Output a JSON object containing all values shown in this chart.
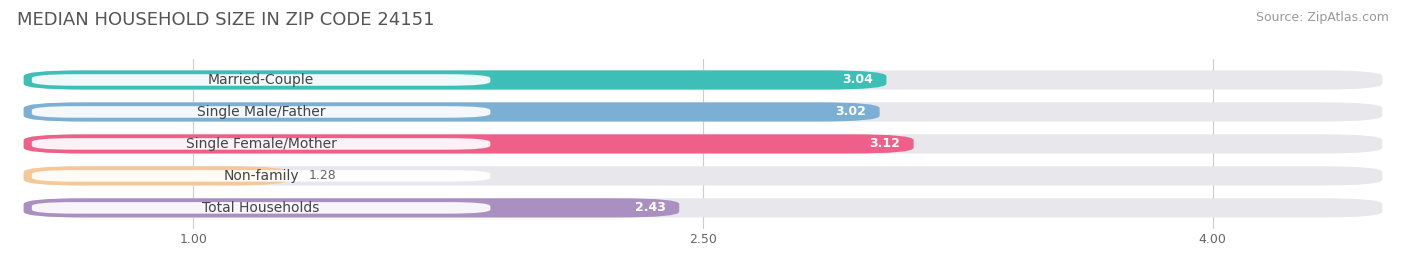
{
  "title": "MEDIAN HOUSEHOLD SIZE IN ZIP CODE 24151",
  "source": "Source: ZipAtlas.com",
  "categories": [
    "Married-Couple",
    "Single Male/Father",
    "Single Female/Mother",
    "Non-family",
    "Total Households"
  ],
  "values": [
    3.04,
    3.02,
    3.12,
    1.28,
    2.43
  ],
  "bar_colors": [
    "#3DBFB8",
    "#7BAFD4",
    "#EE5F8A",
    "#F5C897",
    "#A990C0"
  ],
  "value_colors": [
    "white",
    "white",
    "white",
    "#888855",
    "#555588"
  ],
  "xlim_min": 0.5,
  "xlim_max": 4.5,
  "xticks": [
    1.0,
    2.5,
    4.0
  ],
  "xtick_labels": [
    "1.00",
    "2.50",
    "4.00"
  ],
  "title_fontsize": 13,
  "source_fontsize": 9,
  "label_fontsize": 10,
  "value_fontsize": 9,
  "background_color": "#ffffff",
  "bar_bg_color": "#e8e8ec",
  "label_bg_color": "#ffffff",
  "bar_height": 0.6
}
